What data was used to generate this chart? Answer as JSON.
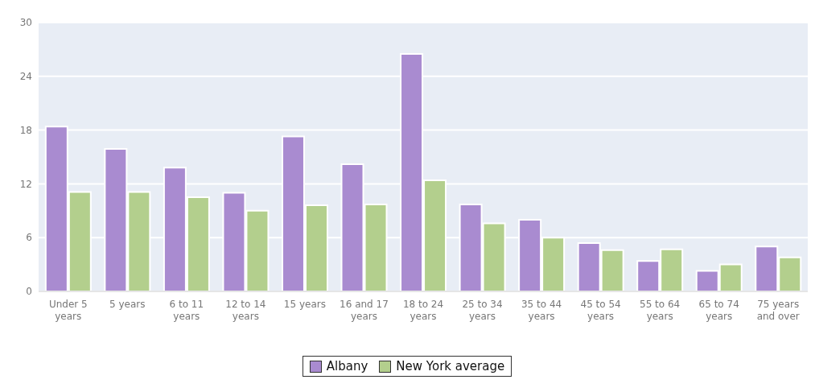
{
  "chart_data": {
    "type": "bar",
    "categories": [
      "Under 5 years",
      "5 years",
      "6 to 11 years",
      "12 to 14 years",
      "15 years",
      "16 and 17 years",
      "18 to 24 years",
      "25 to 34 years",
      "35 to 44 years",
      "45 to 54 years",
      "55 to 64 years",
      "65 to 74 years",
      "75 years and over"
    ],
    "series": [
      {
        "name": "Albany",
        "color": "#a98bd0",
        "values": [
          18.4,
          15.9,
          13.8,
          11.0,
          17.3,
          14.2,
          26.5,
          9.7,
          8.0,
          5.4,
          3.4,
          2.3,
          5.0
        ]
      },
      {
        "name": "New York average",
        "color": "#b3cf8d",
        "values": [
          11.1,
          11.1,
          10.5,
          9.0,
          9.6,
          9.7,
          12.4,
          7.6,
          6.0,
          4.6,
          4.7,
          3.0,
          3.8
        ]
      }
    ],
    "ylim": [
      0,
      30
    ],
    "yticks": [
      0,
      6,
      12,
      18,
      24,
      30
    ],
    "grid": "y",
    "legend": "bottom"
  }
}
